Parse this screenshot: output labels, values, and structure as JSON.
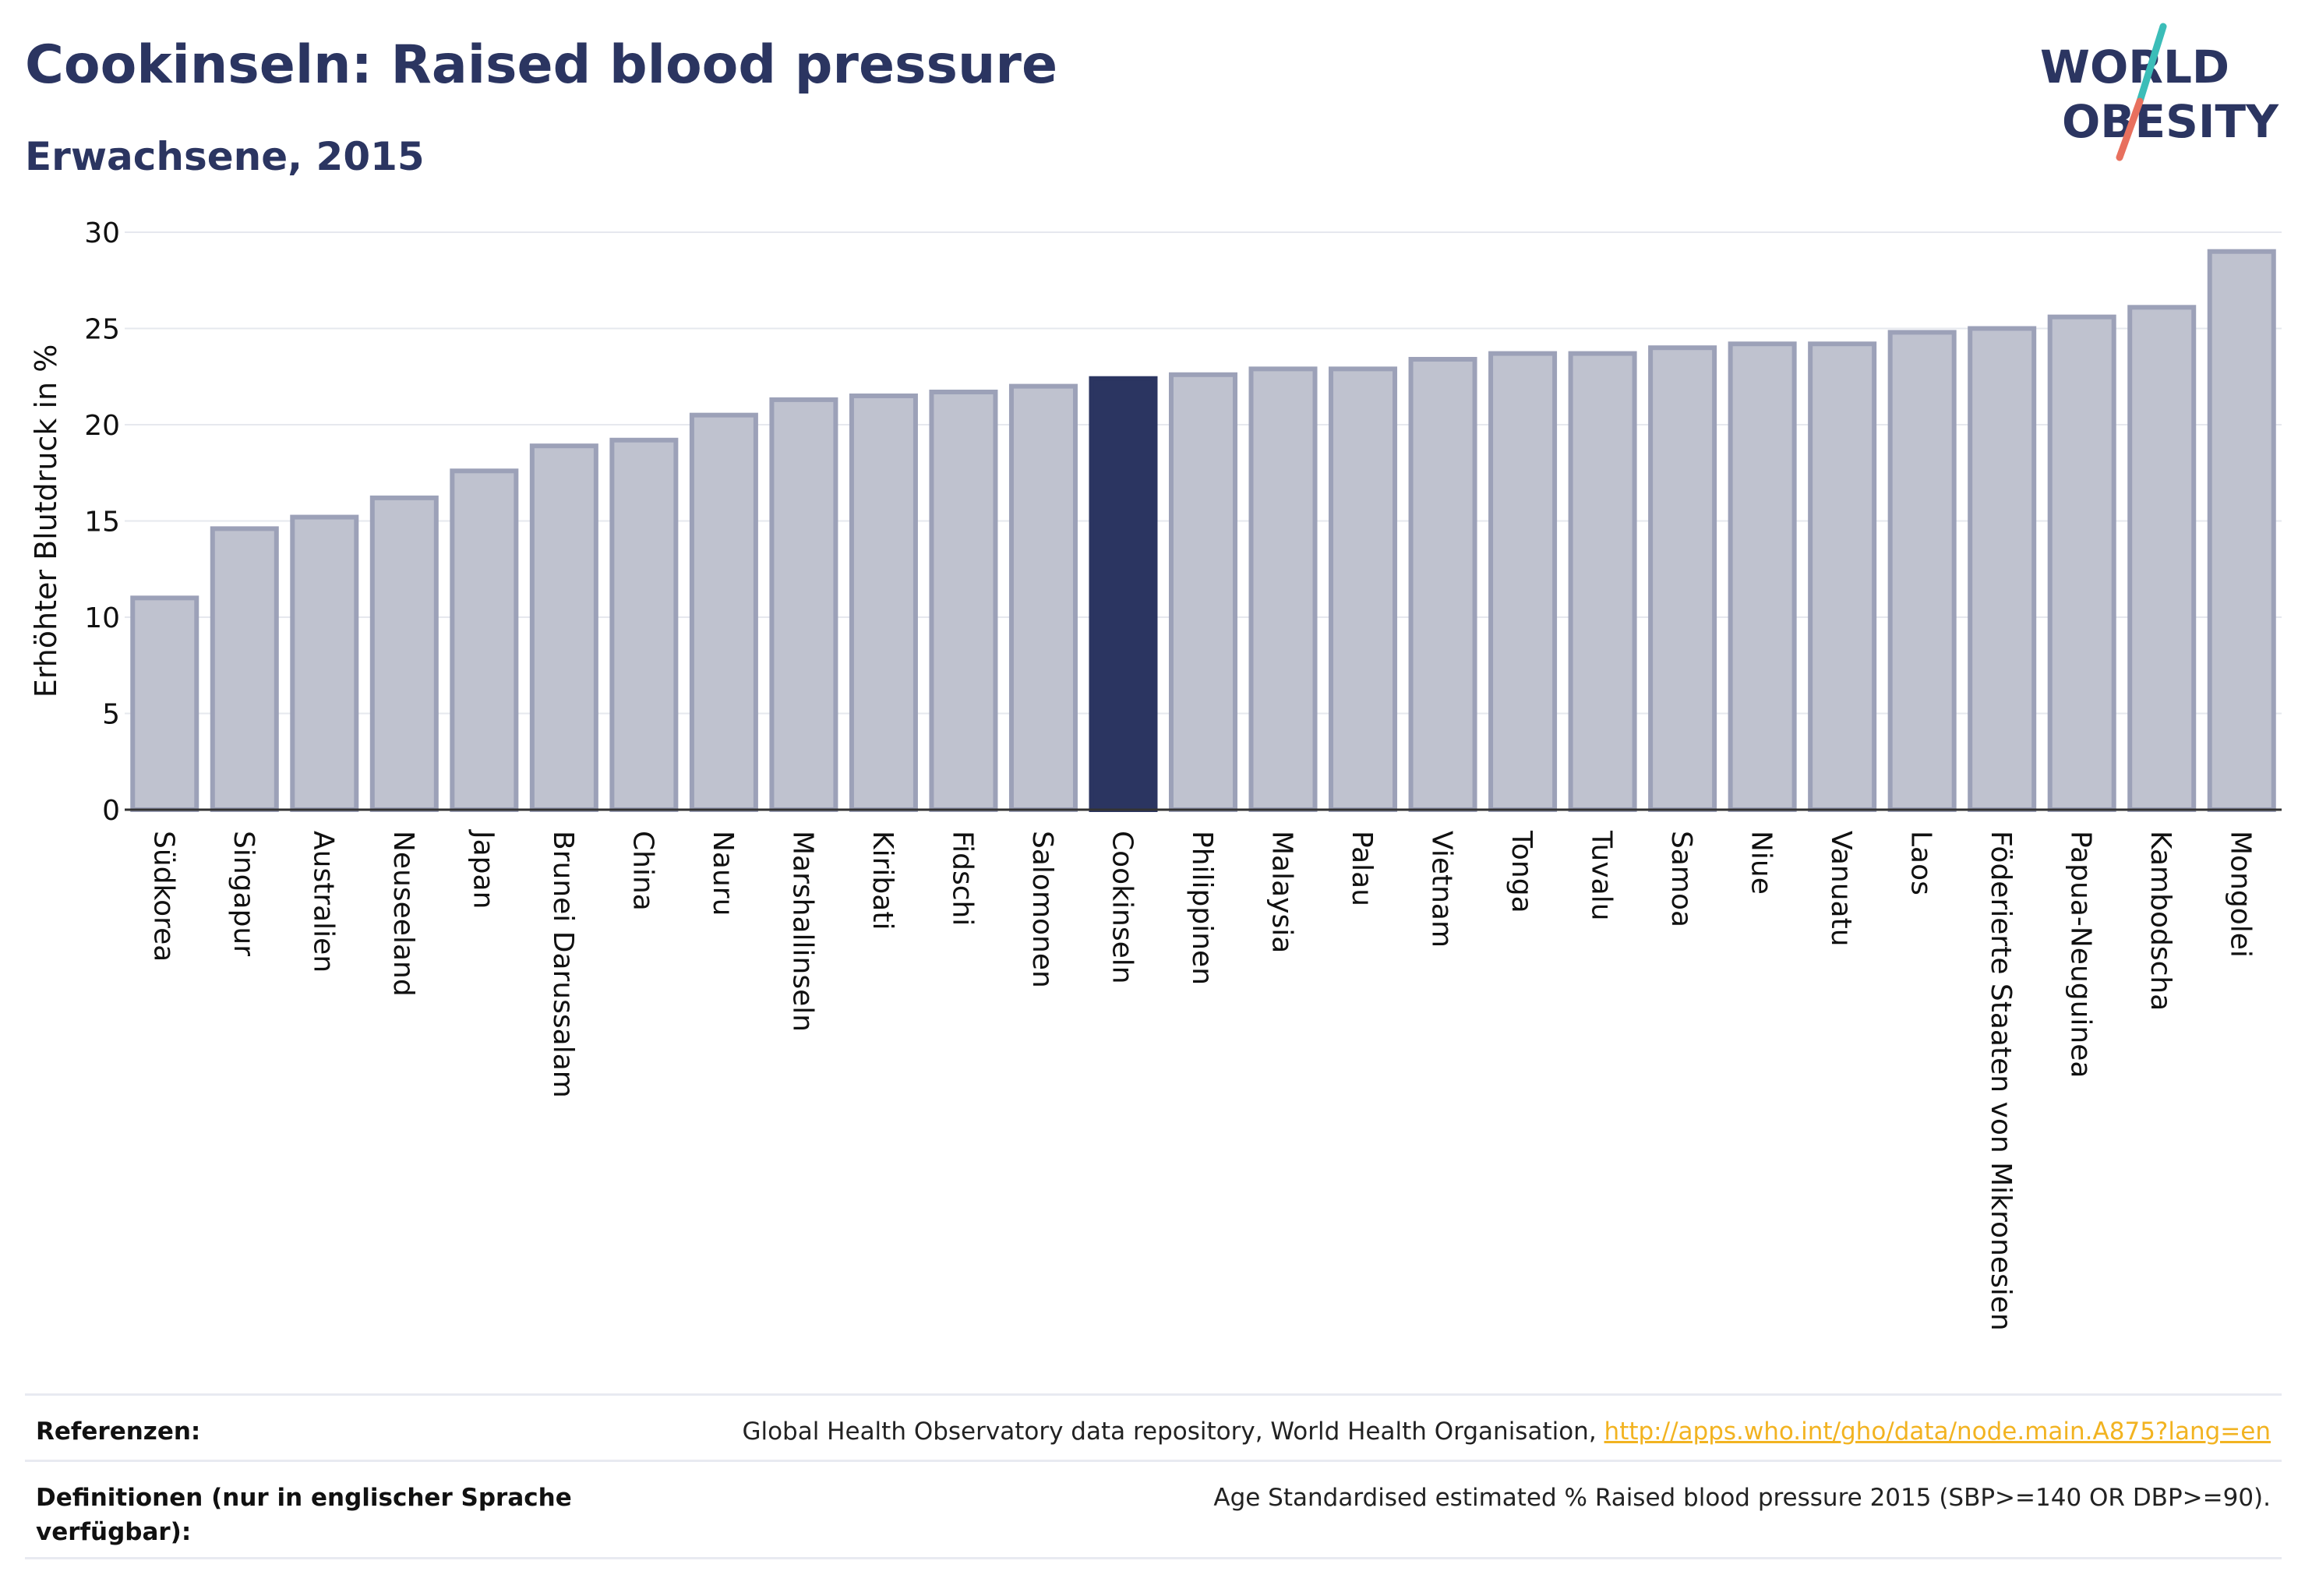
{
  "header": {
    "title": "Cookinseln: Raised blood pressure",
    "subtitle": "Erwachsene, 2015"
  },
  "logo": {
    "line1": "WORLD",
    "line2": "OBESITY",
    "colors": {
      "text": "#2b3561",
      "slash_teal": "#3bbdb8",
      "slash_coral": "#e8705e"
    }
  },
  "chart_data": {
    "type": "bar",
    "ylabel": "Erhöhter Blutdruck in %",
    "xlabel": "",
    "ylim": [
      0,
      30
    ],
    "yticks": [
      0,
      5,
      10,
      15,
      20,
      25,
      30
    ],
    "grid": true,
    "highlight": "Cookinseln",
    "colors": {
      "bar": "#bfc2cf",
      "bar_edge": "#9ca1b8",
      "highlight": "#2b3561"
    },
    "categories": [
      "Südkorea",
      "Singapur",
      "Australien",
      "Neuseeland",
      "Japan",
      "Brunei Darussalam",
      "China",
      "Nauru",
      "Marshallinseln",
      "Kiribati",
      "Fidschi",
      "Salomonen",
      "Cookinseln",
      "Philippinen",
      "Malaysia",
      "Palau",
      "Vietnam",
      "Tonga",
      "Tuvalu",
      "Samoa",
      "Niue",
      "Vanuatu",
      "Laos",
      "Föderierte Staaten von Mikronesien",
      "Papua-Neuguinea",
      "Kambodscha",
      "Mongolei"
    ],
    "values": [
      11.0,
      14.6,
      15.2,
      16.2,
      17.6,
      18.9,
      19.2,
      20.5,
      21.3,
      21.5,
      21.7,
      22.0,
      22.4,
      22.6,
      22.9,
      22.9,
      23.4,
      23.7,
      23.7,
      24.0,
      24.2,
      24.2,
      24.8,
      25.0,
      25.6,
      26.1,
      29.0
    ]
  },
  "footer": {
    "references_label": "Referenzen:",
    "references_text": "Global Health Observatory data repository, World Health Organisation, ",
    "references_link": "http://apps.who.int/gho/data/node.main.A875?lang=en",
    "definitions_label": "Definitionen (nur in englischer Sprache verfügbar):",
    "definitions_text": "Age Standardised estimated % Raised blood pressure 2015 (SBP>=140 OR DBP>=90)."
  }
}
